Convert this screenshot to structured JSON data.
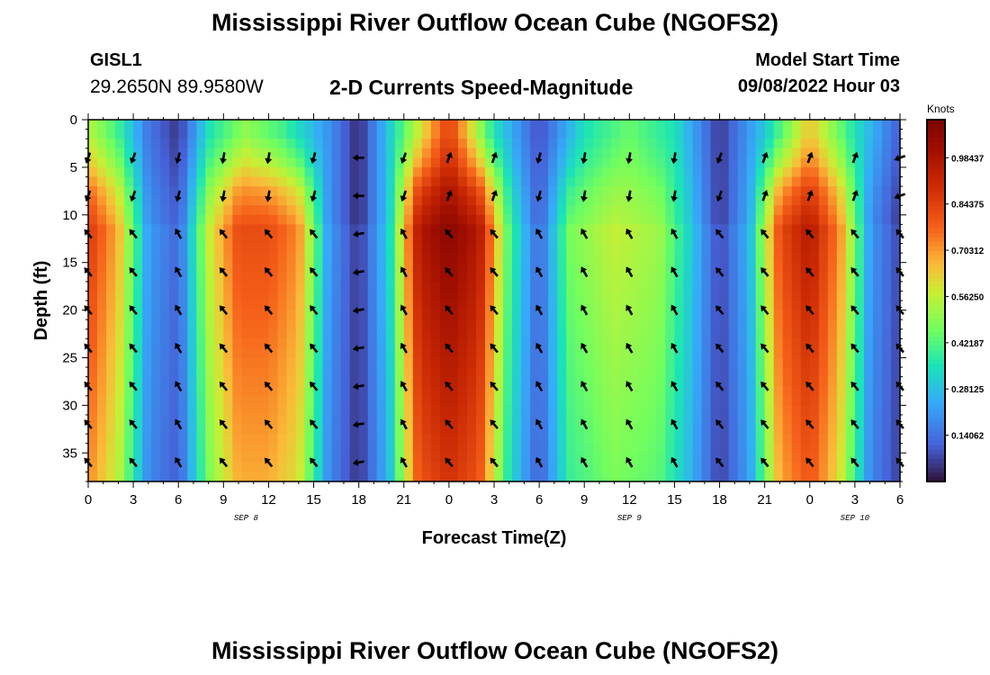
{
  "header": {
    "title": "Mississippi River Outflow Ocean Cube (NGOFS2)",
    "station": "GISL1",
    "coords": "29.2650N  89.9580W",
    "subtitle": "2-D Currents Speed-Magnitude",
    "model_start_label": "Model Start Time",
    "model_start_value": "09/08/2022 Hour 03"
  },
  "footer": {
    "title": "Mississippi River Outflow Ocean Cube (NGOFS2)"
  },
  "chart_data": {
    "type": "heatmap",
    "title": "2-D Currents Speed-Magnitude",
    "xlabel": "Forecast Time(Z)",
    "ylabel": "Depth (ft)",
    "x_range_hours": [
      0,
      54
    ],
    "y_range_ft": [
      0,
      38
    ],
    "x_ticks": [
      "0",
      "3",
      "6",
      "9",
      "12",
      "15",
      "18",
      "21",
      "0",
      "3",
      "6",
      "9",
      "12",
      "15",
      "18",
      "21",
      "0",
      "3",
      "6"
    ],
    "y_ticks": [
      "0",
      "5",
      "10",
      "15",
      "20",
      "25",
      "30",
      "35"
    ],
    "y_tick_values": [
      0,
      5,
      10,
      15,
      20,
      25,
      30,
      35
    ],
    "date_labels": [
      {
        "label": "SEP 8",
        "hour": 10.5
      },
      {
        "label": "SEP 9",
        "hour": 36.0
      },
      {
        "label": "SEP 10",
        "hour": 51.0
      }
    ],
    "colorbar": {
      "unit": "Knots",
      "min": 0.0,
      "max": 1.1,
      "ticks": [
        "0.98437",
        "0.84375",
        "0.70312",
        "0.56250",
        "0.42187",
        "0.28125",
        "0.14062"
      ],
      "tick_values": [
        0.98437,
        0.84375,
        0.70312,
        0.5625,
        0.42187,
        0.28125,
        0.14062
      ]
    },
    "surface_layer_speed": [
      {
        "hour": 0,
        "v": 0.55
      },
      {
        "hour": 2,
        "v": 0.4
      },
      {
        "hour": 4,
        "v": 0.15
      },
      {
        "hour": 6,
        "v": 0.05
      },
      {
        "hour": 8,
        "v": 0.35
      },
      {
        "hour": 10.5,
        "v": 0.5
      },
      {
        "hour": 13,
        "v": 0.4
      },
      {
        "hour": 16,
        "v": 0.2
      },
      {
        "hour": 18,
        "v": 0.03
      },
      {
        "hour": 20,
        "v": 0.3
      },
      {
        "hour": 24,
        "v": 0.85
      },
      {
        "hour": 27,
        "v": 0.35
      },
      {
        "hour": 30,
        "v": 0.08
      },
      {
        "hour": 33,
        "v": 0.35
      },
      {
        "hour": 36,
        "v": 0.45
      },
      {
        "hour": 39,
        "v": 0.35
      },
      {
        "hour": 42,
        "v": 0.05
      },
      {
        "hour": 45,
        "v": 0.3
      },
      {
        "hour": 48,
        "v": 0.65
      },
      {
        "hour": 51,
        "v": 0.35
      },
      {
        "hour": 54,
        "v": 0.1
      }
    ],
    "deep_layer_speed": [
      {
        "hour": 0,
        "v": 0.85
      },
      {
        "hour": 2,
        "v": 0.65
      },
      {
        "hour": 4,
        "v": 0.2
      },
      {
        "hour": 6,
        "v": 0.1
      },
      {
        "hour": 8,
        "v": 0.55
      },
      {
        "hour": 10,
        "v": 0.8
      },
      {
        "hour": 12,
        "v": 0.8
      },
      {
        "hour": 14,
        "v": 0.7
      },
      {
        "hour": 16,
        "v": 0.2
      },
      {
        "hour": 18,
        "v": 0.03
      },
      {
        "hour": 20,
        "v": 0.3
      },
      {
        "hour": 22,
        "v": 0.95
      },
      {
        "hour": 24,
        "v": 1.05
      },
      {
        "hour": 26,
        "v": 0.95
      },
      {
        "hour": 28,
        "v": 0.4
      },
      {
        "hour": 30,
        "v": 0.1
      },
      {
        "hour": 32,
        "v": 0.45
      },
      {
        "hour": 35,
        "v": 0.55
      },
      {
        "hour": 38,
        "v": 0.5
      },
      {
        "hour": 40,
        "v": 0.3
      },
      {
        "hour": 42,
        "v": 0.05
      },
      {
        "hour": 44,
        "v": 0.25
      },
      {
        "hour": 46,
        "v": 0.8
      },
      {
        "hour": 48,
        "v": 0.95
      },
      {
        "hour": 50,
        "v": 0.7
      },
      {
        "hour": 52,
        "v": 0.2
      },
      {
        "hour": 54,
        "v": 0.05
      }
    ],
    "vector_columns_hours": [
      0,
      3,
      6,
      9,
      12,
      15,
      18,
      21,
      24,
      27,
      30,
      33,
      36,
      39,
      42,
      45,
      48,
      51,
      54
    ],
    "vector_rows_depth_ft": [
      4,
      8,
      12,
      16,
      20,
      24,
      28,
      32,
      36
    ],
    "vector_directions_deg": {
      "surface": [
        200,
        200,
        195,
        190,
        190,
        195,
        270,
        200,
        20,
        20,
        195,
        190,
        190,
        190,
        200,
        20,
        20,
        20,
        250
      ],
      "deep": [
        320,
        320,
        330,
        320,
        320,
        320,
        260,
        330,
        320,
        320,
        330,
        330,
        330,
        330,
        320,
        320,
        320,
        320,
        320
      ]
    },
    "grid": false,
    "legend": "right"
  }
}
